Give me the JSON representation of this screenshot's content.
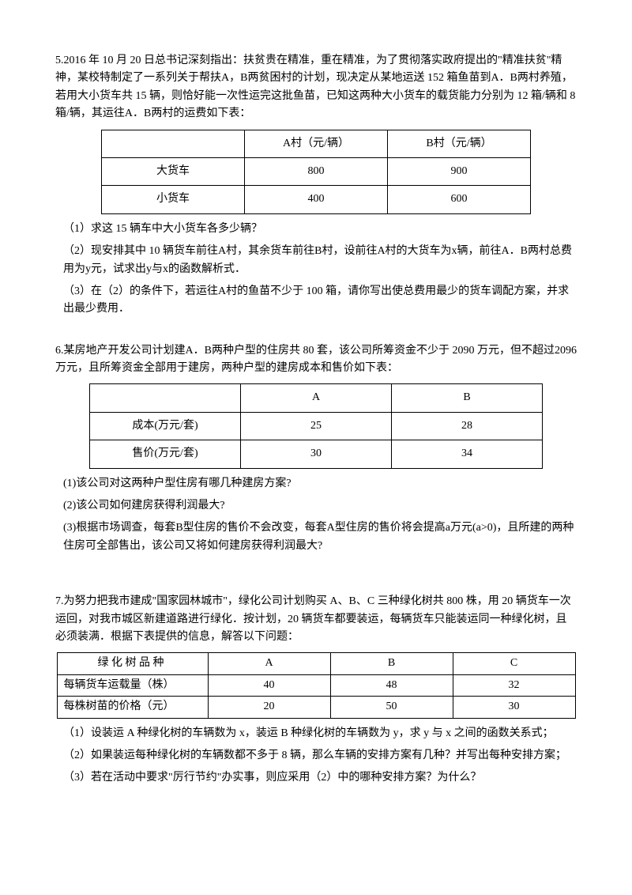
{
  "q5": {
    "intro": "5.2016 年 10 月 20 日总书记深刻指出：扶贫贵在精准，重在精准，为了贯彻落实政府提出的\"精准扶贫\"精神，某校特制定了一系列关于帮扶A，B两贫困村的计划，现决定从某地运送 152 箱鱼苗到A．B两村养殖，若用大小货车共 15 辆，则恰好能一次性运完这批鱼苗，已知这两种大小货车的载货能力分别为 12 箱/辆和 8 箱/辆，其运往A．B两村的运费如下表：",
    "table": {
      "h1": "A村（元/辆）",
      "h2": "B村（元/辆）",
      "r1c0": "大货车",
      "r1c1": "800",
      "r1c2": "900",
      "r2c0": "小货车",
      "r2c1": "400",
      "r2c2": "600"
    },
    "p1": "（1）求这 15 辆车中大小货车各多少辆？",
    "p2": "（2）现安排其中 10 辆货车前往A村，其余货车前往B村，设前往A村的大货车为x辆，前往A．B两村总费用为y元，试求出y与x的函数解析式．",
    "p3": "（3）在（2）的条件下，若运往A村的鱼苗不少于 100 箱，请你写出使总费用最少的货车调配方案，并求出最少费用．"
  },
  "q6": {
    "intro": "6.某房地产开发公司计划建A．B两种户型的住房共 80 套，该公司所筹资金不少于 2090 万元，但不超过2096 万元，且所筹资金全部用于建房，两种户型的建房成本和售价如下表：",
    "table": {
      "hA": "A",
      "hB": "B",
      "r1c0": "成本(万元/套)",
      "r1c1": "25",
      "r1c2": "28",
      "r2c0": "售价(万元/套)",
      "r2c1": "30",
      "r2c2": "34"
    },
    "p1": "(1)该公司对这两种户型住房有哪几种建房方案?",
    "p2": "(2)该公司如何建房获得利润最大?",
    "p3": "(3)根据市场调查，每套B型住房的售价不会改变，每套A型住房的售价将会提高a万元(a>0)，且所建的两种住房可全部售出，该公司又将如何建房获得利润最大?"
  },
  "q7": {
    "intro": "7.为努力把我市建成\"国家园林城市\"，绿化公司计划购买 A、B、C 三种绿化树共 800 株，用 20 辆货车一次运回，对我市城区新建道路进行绿化．按计划，20 辆货车都要装运，每辆货车只能装运同一种绿化树，且必须装满．根据下表提供的信息，解答以下问题：",
    "table": {
      "h0": "绿 化 树 品 种",
      "hA": "A",
      "hB": "B",
      "hC": "C",
      "r1c0": "每辆货车运载量（株）",
      "r1c1": "40",
      "r1c2": "48",
      "r1c3": "32",
      "r2c0": "每株树苗的价格（元）",
      "r2c1": "20",
      "r2c2": "50",
      "r2c3": "30"
    },
    "p1": "（1）设装运 A 种绿化树的车辆数为 x，装运 B 种绿化树的车辆数为 y，求 y 与 x 之间的函数关系式；",
    "p2": "（2）如果装运每种绿化树的车辆数都不多于 8 辆，那么车辆的安排方案有几种？并写出每种安排方案；",
    "p3": "（3）若在活动中要求\"厉行节约\"办实事，则应采用（2）中的哪种安排方案？为什么？"
  }
}
